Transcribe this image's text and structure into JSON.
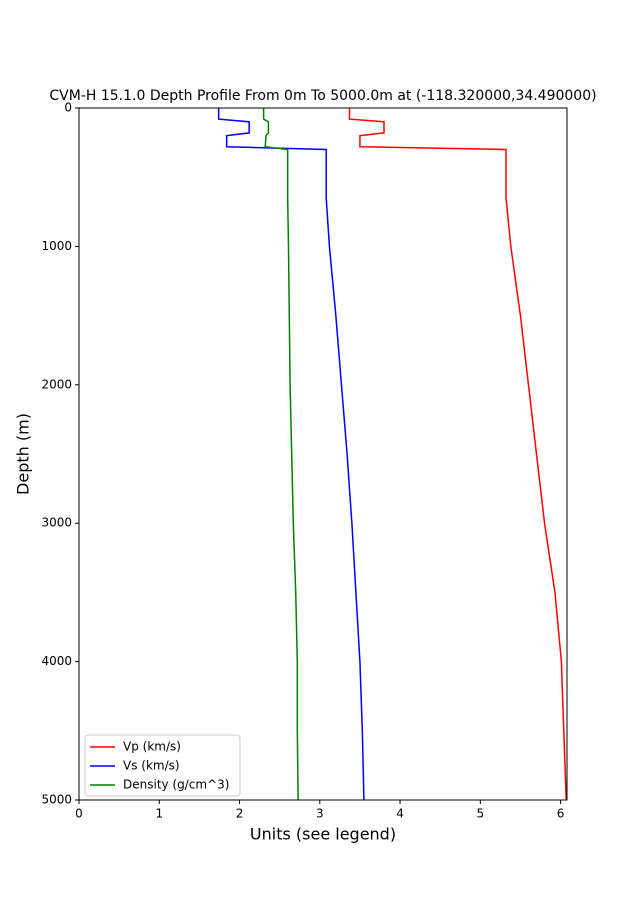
{
  "chart_data": {
    "type": "line",
    "title": "CVM-H 15.1.0 Depth Profile From 0m To 5000.0m at (-118.320000,34.490000)",
    "x_label": "Units (see legend)",
    "y_label": "Depth (m)",
    "depths": [
      0,
      80,
      100,
      180,
      200,
      280,
      300,
      650,
      1000,
      1500,
      2000,
      2500,
      3000,
      3500,
      4000,
      4500,
      5000
    ],
    "series": [
      {
        "name": "Vp (km/s)",
        "color": "#ff0000",
        "values": [
          3.37,
          3.37,
          3.8,
          3.8,
          3.5,
          3.5,
          5.32,
          5.32,
          5.38,
          5.5,
          5.6,
          5.7,
          5.8,
          5.93,
          6.01,
          6.04,
          6.07
        ]
      },
      {
        "name": "Vs (km/s)",
        "color": "#0000ff",
        "values": [
          1.74,
          1.74,
          2.12,
          2.12,
          1.84,
          1.84,
          3.08,
          3.08,
          3.12,
          3.2,
          3.27,
          3.34,
          3.4,
          3.45,
          3.5,
          3.53,
          3.55
        ]
      },
      {
        "name": "Density (g/cm^3)",
        "color": "#008000",
        "values": [
          2.3,
          2.3,
          2.36,
          2.36,
          2.33,
          2.32,
          2.6,
          2.6,
          2.61,
          2.62,
          2.63,
          2.65,
          2.67,
          2.7,
          2.72,
          2.72,
          2.73
        ]
      }
    ],
    "xlim": [
      0,
      6.08
    ],
    "xticks": [
      0,
      1,
      2,
      3,
      4,
      5,
      6
    ],
    "ylim": [
      0,
      5000
    ],
    "yticks": [
      0,
      1000,
      2000,
      3000,
      4000,
      5000
    ],
    "y_inverted": true,
    "legend": "lower-left"
  }
}
